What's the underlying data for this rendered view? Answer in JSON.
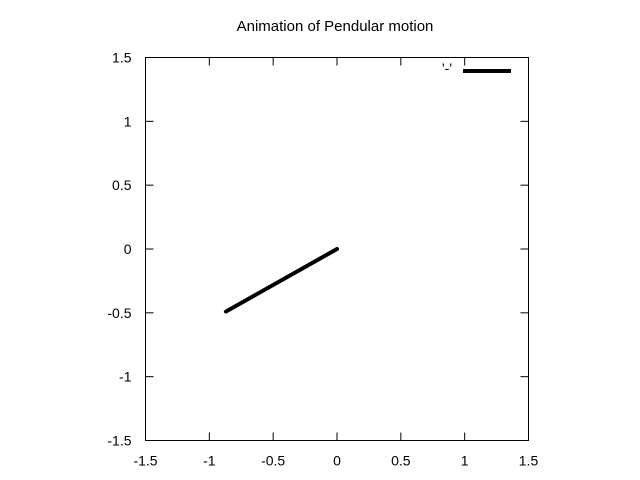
{
  "chart_data": {
    "type": "line",
    "title": "Animation of Pendular motion",
    "xlabel": "",
    "ylabel": "",
    "xlim": [
      -1.5,
      1.5
    ],
    "ylim": [
      -1.5,
      1.5
    ],
    "xticks": [
      -1.5,
      -1,
      -0.5,
      0,
      0.5,
      1,
      1.5
    ],
    "yticks": [
      -1.5,
      -1,
      -0.5,
      0,
      0.5,
      1,
      1.5
    ],
    "xtick_labels": [
      "-1.5",
      "-1",
      "-0.5",
      "0",
      "0.5",
      "1",
      "1.5"
    ],
    "ytick_labels": [
      "-1.5",
      "-1",
      "-0.5",
      "0",
      "0.5",
      "1",
      "1.5"
    ],
    "grid": false,
    "legend_position": "top-right",
    "series": [
      {
        "name": "'-'",
        "color": "#000000",
        "x": [
          0,
          -0.87
        ],
        "y": [
          0,
          -0.49
        ]
      }
    ]
  }
}
